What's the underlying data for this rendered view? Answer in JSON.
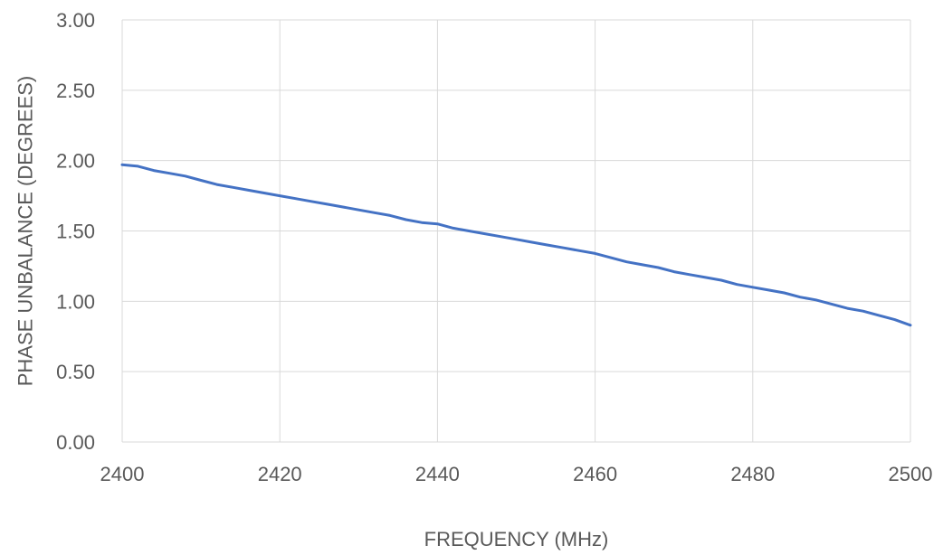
{
  "chart_data": {
    "type": "line",
    "xlabel": "FREQUENCY (MHz)",
    "ylabel": "PHASE UNBALANCE (DEGREES)",
    "xlim": [
      2400,
      2500
    ],
    "ylim": [
      0,
      3
    ],
    "x_ticks": [
      "2400",
      "2420",
      "2440",
      "2460",
      "2480",
      "2500"
    ],
    "y_ticks": [
      "0.00",
      "0.50",
      "1.00",
      "1.50",
      "2.00",
      "2.50",
      "3.00"
    ],
    "grid": true,
    "series": [
      {
        "color": "#4472c4",
        "x": [
          2400,
          2402,
          2404,
          2406,
          2408,
          2410,
          2412,
          2414,
          2416,
          2418,
          2420,
          2422,
          2424,
          2426,
          2428,
          2430,
          2432,
          2434,
          2436,
          2438,
          2440,
          2442,
          2444,
          2446,
          2448,
          2450,
          2452,
          2454,
          2456,
          2458,
          2460,
          2462,
          2464,
          2466,
          2468,
          2470,
          2472,
          2474,
          2476,
          2478,
          2480,
          2482,
          2484,
          2486,
          2488,
          2490,
          2492,
          2494,
          2496,
          2498,
          2500
        ],
        "values": [
          1.97,
          1.96,
          1.93,
          1.91,
          1.89,
          1.86,
          1.83,
          1.81,
          1.79,
          1.77,
          1.75,
          1.73,
          1.71,
          1.69,
          1.67,
          1.65,
          1.63,
          1.61,
          1.58,
          1.56,
          1.55,
          1.52,
          1.5,
          1.48,
          1.46,
          1.44,
          1.42,
          1.4,
          1.38,
          1.36,
          1.34,
          1.31,
          1.28,
          1.26,
          1.24,
          1.21,
          1.19,
          1.17,
          1.15,
          1.12,
          1.1,
          1.08,
          1.06,
          1.03,
          1.01,
          0.98,
          0.95,
          0.93,
          0.9,
          0.87,
          0.83
        ]
      }
    ]
  }
}
